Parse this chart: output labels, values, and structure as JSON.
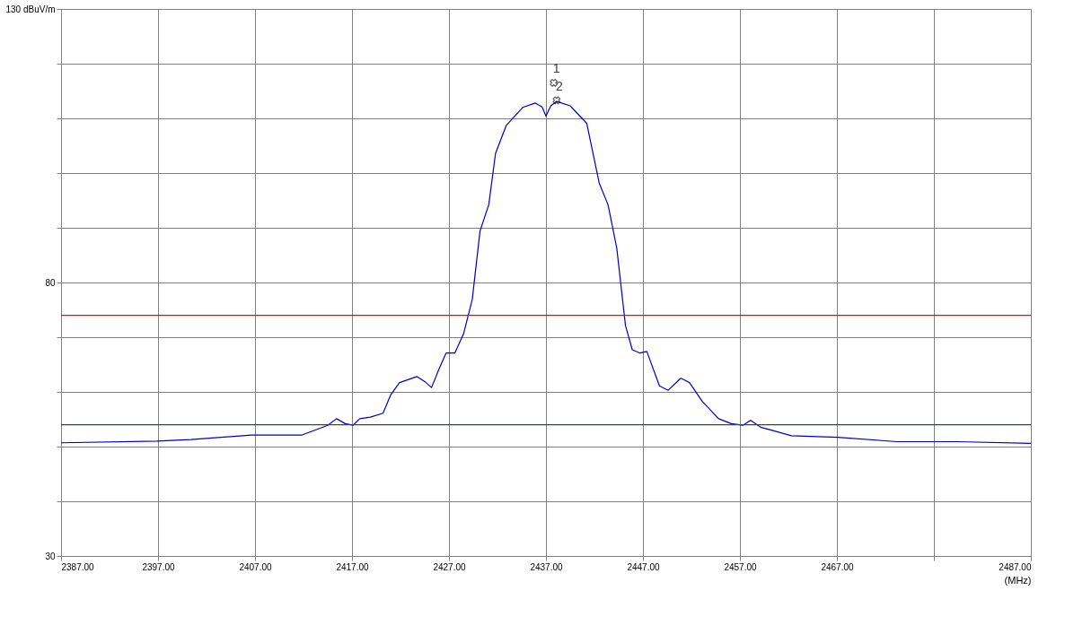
{
  "chart_data": {
    "type": "line",
    "xlabel": "(MHz)",
    "xlim": [
      2387,
      2487
    ],
    "ylim": [
      30,
      130
    ],
    "xticks": [
      {
        "value": 2387,
        "label": "2387.00"
      },
      {
        "value": 2397,
        "label": "2397.00"
      },
      {
        "value": 2407,
        "label": "2407.00"
      },
      {
        "value": 2417,
        "label": "2417.00"
      },
      {
        "value": 2427,
        "label": "2427.00"
      },
      {
        "value": 2437,
        "label": "2437.00"
      },
      {
        "value": 2447,
        "label": "2447.00"
      },
      {
        "value": 2457,
        "label": "2457.00"
      },
      {
        "value": 2467,
        "label": "2467.00"
      },
      {
        "value": 2477,
        "label": null
      },
      {
        "value": 2487,
        "label": "2487.00"
      }
    ],
    "yticks": [
      30,
      {
        "value": 40,
        "label": null
      },
      {
        "value": 50,
        "label": null
      },
      {
        "value": 60,
        "label": null
      },
      {
        "value": 70,
        "label": null
      },
      80,
      {
        "value": 90,
        "label": null
      },
      {
        "value": 100,
        "label": null
      },
      {
        "value": 110,
        "label": null
      },
      {
        "value": 120,
        "label": null
      },
      {
        "value": 130,
        "label": "130 dBuV/m"
      }
    ],
    "grid": true,
    "line_style": "solid",
    "marker": "none",
    "series": [
      {
        "type": "line",
        "color": "#0000c0",
        "x": [
          2387,
          2396.9,
          2400.4,
          2406.6,
          2411.8,
          2414.5,
          2415.4,
          2416.3,
          2417.1,
          2417.8,
          2418.9,
          2420.2,
          2421.0,
          2421.9,
          2423.7,
          2424.5,
          2425.2,
          2426.0,
          2426.7,
          2427.6,
          2428.5,
          2429.4,
          2430.2,
          2431.1,
          2431.8,
          2432.9,
          2434.6,
          2435.9,
          2436.6,
          2437.0,
          2437.5,
          2438.1,
          2439.5,
          2441.2,
          2442.5,
          2443.4,
          2444.3,
          2445.2,
          2445.9,
          2446.7,
          2447.4,
          2448.7,
          2449.6,
          2450.9,
          2451.8,
          2453.1,
          2454.8,
          2456.1,
          2457.3,
          2458.1,
          2459.2,
          2460.5,
          2462.3,
          2467.1,
          2473.2,
          2479.4,
          2487
        ],
        "values": [
          50.7,
          51.0,
          51.3,
          52.1,
          52.1,
          53.9,
          55.1,
          54.2,
          53.9,
          55.1,
          55.4,
          56.1,
          59.5,
          61.7,
          62.8,
          61.9,
          60.8,
          64.3,
          67.1,
          67.1,
          70.6,
          76.9,
          89.4,
          94.2,
          103.6,
          108.7,
          112.0,
          112.8,
          112.1,
          110.4,
          112.3,
          113.1,
          112.3,
          109.1,
          98.1,
          94.2,
          86.3,
          72.1,
          67.7,
          67.1,
          67.4,
          61.1,
          60.3,
          62.5,
          61.7,
          58.3,
          55.1,
          54.2,
          53.9,
          54.8,
          53.5,
          52.9,
          52.0,
          51.7,
          50.9,
          50.9,
          50.6
        ]
      },
      {
        "type": "scatter",
        "marker": "cross",
        "color": "#000000",
        "x": [
          2437.8,
          2438.1
        ],
        "values": [
          116.5,
          113.3
        ]
      }
    ],
    "ref_lines": [
      {
        "axis": "y",
        "value": 74,
        "color": "#ff0000"
      },
      {
        "axis": "y",
        "value": 54,
        "color": "#2f4f2f"
      }
    ],
    "annotations": [
      {
        "text": "1",
        "x": 2437.8,
        "y": 116.5
      },
      {
        "text": "2",
        "x": 2438.1,
        "y": 113.3
      }
    ]
  }
}
